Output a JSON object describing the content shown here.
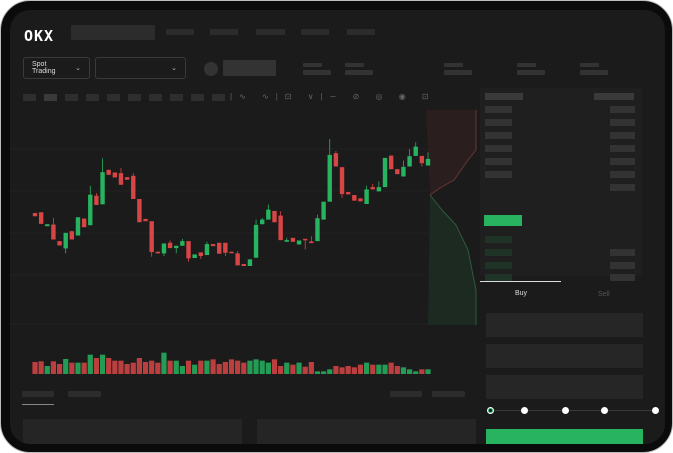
{
  "brand": {
    "logo": "OKX"
  },
  "header": {
    "market_type": "Spot Trading"
  },
  "orderbook": {
    "view_icons": [
      "orderbook-both-icon",
      "orderbook-bids-icon",
      "orderbook-asks-icon"
    ]
  },
  "trade": {
    "buy_tab": "Buy",
    "sell_tab": "Sell",
    "slider_value": 0
  },
  "colors": {
    "up": "#27b35f",
    "down": "#d84545",
    "background": "#1b1b1b"
  },
  "chart_data": {
    "type": "candlestick",
    "candle_format": [
      "open",
      "close",
      "high",
      "low"
    ],
    "candles": [
      [
        150,
        140,
        150,
        140
      ],
      [
        152,
        117,
        152,
        117
      ],
      [
        110,
        116,
        116,
        110
      ],
      [
        115,
        70,
        135,
        70
      ],
      [
        65,
        52,
        65,
        52
      ],
      [
        43,
        90,
        90,
        28
      ],
      [
        95,
        70,
        95,
        70
      ],
      [
        82,
        137,
        137,
        82
      ],
      [
        133,
        107,
        133,
        107
      ],
      [
        113,
        205,
        232,
        113
      ],
      [
        202,
        174,
        210,
        174
      ],
      [
        176,
        273,
        315,
        176
      ],
      [
        280,
        265,
        280,
        265
      ],
      [
        272,
        257,
        272,
        257
      ],
      [
        270,
        235,
        285,
        235
      ],
      [
        258,
        250,
        258,
        250
      ],
      [
        262,
        192,
        270,
        192
      ],
      [
        192,
        122,
        192,
        122
      ],
      [
        132,
        125,
        132,
        125
      ],
      [
        125,
        32,
        125,
        18
      ],
      [
        33,
        28,
        33,
        28
      ],
      [
        28,
        58,
        58,
        20
      ],
      [
        60,
        44,
        67,
        44
      ],
      [
        44,
        51,
        51,
        28
      ],
      [
        51,
        65,
        72,
        51
      ],
      [
        65,
        13,
        65,
        3
      ],
      [
        14,
        25,
        25,
        14
      ],
      [
        31,
        20,
        31,
        11
      ],
      [
        23,
        56,
        63,
        23
      ],
      [
        56,
        50,
        56,
        50
      ],
      [
        60,
        27,
        60,
        27
      ],
      [
        60,
        30,
        60,
        20
      ],
      [
        33,
        30,
        33,
        30
      ],
      [
        28,
        -8,
        35,
        -8
      ],
      [
        -4,
        -10,
        -4,
        -10
      ],
      [
        -10,
        10,
        10,
        -10
      ],
      [
        15,
        114,
        130,
        15
      ],
      [
        116,
        130,
        135,
        116
      ],
      [
        130,
        160,
        175,
        130
      ],
      [
        156,
        122,
        156,
        122
      ],
      [
        142,
        68,
        155,
        68
      ],
      [
        63,
        68,
        75,
        63
      ],
      [
        75,
        63,
        75,
        63
      ],
      [
        55,
        67,
        67,
        55
      ],
      [
        72,
        69,
        72,
        40
      ],
      [
        64,
        59,
        80,
        59
      ],
      [
        65,
        134,
        145,
        65
      ],
      [
        130,
        184,
        184,
        130
      ],
      [
        184,
        325,
        373,
        184
      ],
      [
        330,
        290,
        337,
        290
      ],
      [
        288,
        207,
        288,
        195
      ],
      [
        213,
        206,
        213,
        206
      ],
      [
        204,
        187,
        204,
        187
      ],
      [
        194,
        185,
        194,
        185
      ],
      [
        177,
        221,
        232,
        177
      ],
      [
        228,
        221,
        238,
        221
      ],
      [
        215,
        228,
        245,
        215
      ],
      [
        228,
        316,
        316,
        228
      ],
      [
        323,
        282,
        323,
        282
      ],
      [
        282,
        267,
        282,
        267
      ],
      [
        260,
        289,
        308,
        260
      ],
      [
        290,
        321,
        343,
        290
      ],
      [
        322,
        350,
        363,
        322
      ],
      [
        322,
        300,
        322,
        290
      ],
      [
        293,
        313,
        333,
        293
      ]
    ],
    "volume": [
      36,
      38,
      24,
      38,
      30,
      45,
      34,
      34,
      34,
      58,
      48,
      58,
      48,
      40,
      40,
      30,
      34,
      48,
      36,
      40,
      34,
      64,
      40,
      40,
      24,
      40,
      28,
      40,
      40,
      44,
      30,
      36,
      44,
      40,
      34,
      40,
      44,
      40,
      34,
      44,
      24,
      34,
      28,
      34,
      22,
      36,
      8,
      8,
      14,
      24,
      20,
      24,
      20,
      28,
      34,
      28,
      28,
      28,
      34,
      24,
      20,
      14,
      8,
      14,
      14
    ],
    "ylim": [
      -10,
      373
    ]
  }
}
